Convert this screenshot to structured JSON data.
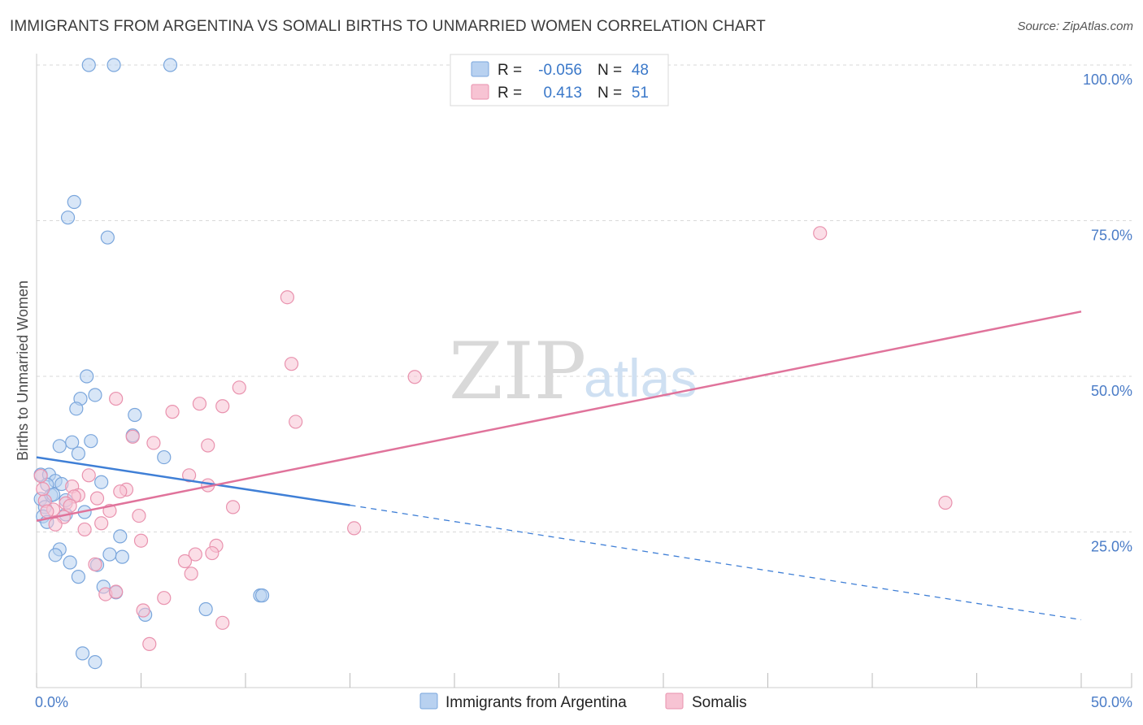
{
  "title": "IMMIGRANTS FROM ARGENTINA VS SOMALI BIRTHS TO UNMARRIED WOMEN CORRELATION CHART",
  "source": "Source: ZipAtlas.com",
  "watermark": {
    "zip": "ZIP",
    "atlas": "atlas"
  },
  "legend": {
    "rows": [
      {
        "r_label": "R =",
        "r_value": "-0.056",
        "n_label": "N =",
        "n_value": "48"
      },
      {
        "r_label": "R =",
        "r_value": "0.413",
        "n_label": "N =",
        "n_value": "51"
      }
    ]
  },
  "colors": {
    "blue_fill": "#b8d1f0",
    "blue_stroke": "#7aa6dc",
    "blue_line": "#3f7fd6",
    "pink_fill": "#f7c3d3",
    "pink_stroke": "#e992ae",
    "pink_line": "#e0739b",
    "grid": "#d9d9d9",
    "tick_text": "#4a7cc7"
  },
  "chart_data": {
    "type": "scatter",
    "title": "IMMIGRANTS FROM ARGENTINA VS SOMALI BIRTHS TO UNMARRIED WOMEN CORRELATION CHART",
    "xlabel": "",
    "ylabel": "Births to Unmarried Women",
    "xlim": [
      0,
      50
    ],
    "ylim": [
      0,
      102
    ],
    "x_ticks": [
      0,
      5,
      10,
      15,
      20,
      25,
      30,
      35,
      40,
      45,
      50
    ],
    "x_tick_labels": [
      "0.0%",
      "50.0%"
    ],
    "y_ticks": [
      25,
      50,
      75,
      100
    ],
    "y_tick_labels": [
      "25.0%",
      "50.0%",
      "75.0%",
      "100.0%"
    ],
    "grid": true,
    "legend_position": "top-center",
    "series": [
      {
        "name": "Immigrants from Argentina",
        "r": -0.056,
        "n": 48,
        "trend": {
          "x0": 0,
          "y0": 37.0,
          "x1": 15,
          "y1": 29.3,
          "dashed_to_x": 50,
          "dashed_to_y": 10.9
        },
        "points": [
          [
            2.5,
            100
          ],
          [
            3.7,
            100
          ],
          [
            6.4,
            100
          ],
          [
            1.8,
            78
          ],
          [
            1.5,
            75.5
          ],
          [
            3.4,
            72.3
          ],
          [
            2.4,
            50
          ],
          [
            2.8,
            47
          ],
          [
            2.1,
            46.4
          ],
          [
            1.9,
            44.8
          ],
          [
            4.7,
            43.8
          ],
          [
            1.1,
            38.8
          ],
          [
            1.7,
            39.4
          ],
          [
            2.6,
            39.6
          ],
          [
            4.6,
            40.5
          ],
          [
            2.0,
            37.6
          ],
          [
            6.1,
            37.0
          ],
          [
            0.2,
            34.2
          ],
          [
            0.6,
            34.2
          ],
          [
            0.9,
            33.2
          ],
          [
            1.2,
            32.7
          ],
          [
            0.5,
            32.6
          ],
          [
            3.1,
            33.0
          ],
          [
            0.2,
            30.3
          ],
          [
            0.7,
            30.9
          ],
          [
            1.4,
            30.1
          ],
          [
            0.4,
            29.0
          ],
          [
            1.4,
            27.8
          ],
          [
            2.3,
            28.2
          ],
          [
            0.3,
            27.5
          ],
          [
            0.5,
            26.6
          ],
          [
            4.0,
            24.3
          ],
          [
            1.1,
            22.2
          ],
          [
            0.9,
            21.3
          ],
          [
            3.5,
            21.4
          ],
          [
            4.1,
            21.0
          ],
          [
            1.6,
            20.1
          ],
          [
            2.9,
            19.7
          ],
          [
            2.0,
            17.8
          ],
          [
            3.2,
            16.2
          ],
          [
            3.8,
            15.3
          ],
          [
            10.7,
            14.8
          ],
          [
            10.8,
            14.8
          ],
          [
            8.1,
            12.6
          ],
          [
            5.2,
            11.7
          ],
          [
            2.2,
            5.5
          ],
          [
            2.8,
            4.1
          ],
          [
            0.8,
            31.0
          ]
        ]
      },
      {
        "name": "Somalis",
        "r": 0.413,
        "n": 51,
        "trend": {
          "x0": 0,
          "y0": 26.8,
          "x1": 50,
          "y1": 60.4
        },
        "points": [
          [
            37.5,
            73.0
          ],
          [
            12.0,
            62.7
          ],
          [
            12.2,
            52.0
          ],
          [
            18.1,
            49.9
          ],
          [
            9.7,
            48.2
          ],
          [
            3.8,
            46.4
          ],
          [
            7.8,
            45.6
          ],
          [
            8.9,
            45.2
          ],
          [
            6.5,
            44.3
          ],
          [
            12.4,
            42.7
          ],
          [
            4.6,
            40.3
          ],
          [
            5.6,
            39.3
          ],
          [
            8.2,
            38.9
          ],
          [
            2.5,
            34.1
          ],
          [
            7.3,
            34.1
          ],
          [
            0.2,
            34.0
          ],
          [
            1.7,
            32.3
          ],
          [
            8.2,
            32.5
          ],
          [
            4.3,
            31.8
          ],
          [
            4.0,
            31.5
          ],
          [
            2.0,
            30.9
          ],
          [
            1.8,
            30.7
          ],
          [
            2.9,
            30.4
          ],
          [
            0.4,
            30.0
          ],
          [
            1.4,
            29.6
          ],
          [
            0.8,
            28.6
          ],
          [
            1.6,
            29.2
          ],
          [
            0.5,
            28.3
          ],
          [
            9.4,
            29.0
          ],
          [
            3.5,
            28.4
          ],
          [
            43.5,
            29.7
          ],
          [
            1.3,
            27.4
          ],
          [
            4.9,
            27.6
          ],
          [
            0.9,
            26.2
          ],
          [
            3.1,
            26.4
          ],
          [
            15.2,
            25.6
          ],
          [
            2.3,
            25.4
          ],
          [
            5.0,
            23.6
          ],
          [
            8.6,
            22.8
          ],
          [
            8.4,
            21.6
          ],
          [
            7.6,
            21.4
          ],
          [
            7.1,
            20.3
          ],
          [
            2.8,
            19.8
          ],
          [
            7.4,
            18.3
          ],
          [
            3.3,
            15.0
          ],
          [
            3.8,
            15.4
          ],
          [
            6.1,
            14.4
          ],
          [
            5.1,
            12.4
          ],
          [
            8.9,
            10.4
          ],
          [
            5.4,
            7.0
          ],
          [
            0.3,
            31.9
          ]
        ]
      }
    ]
  }
}
